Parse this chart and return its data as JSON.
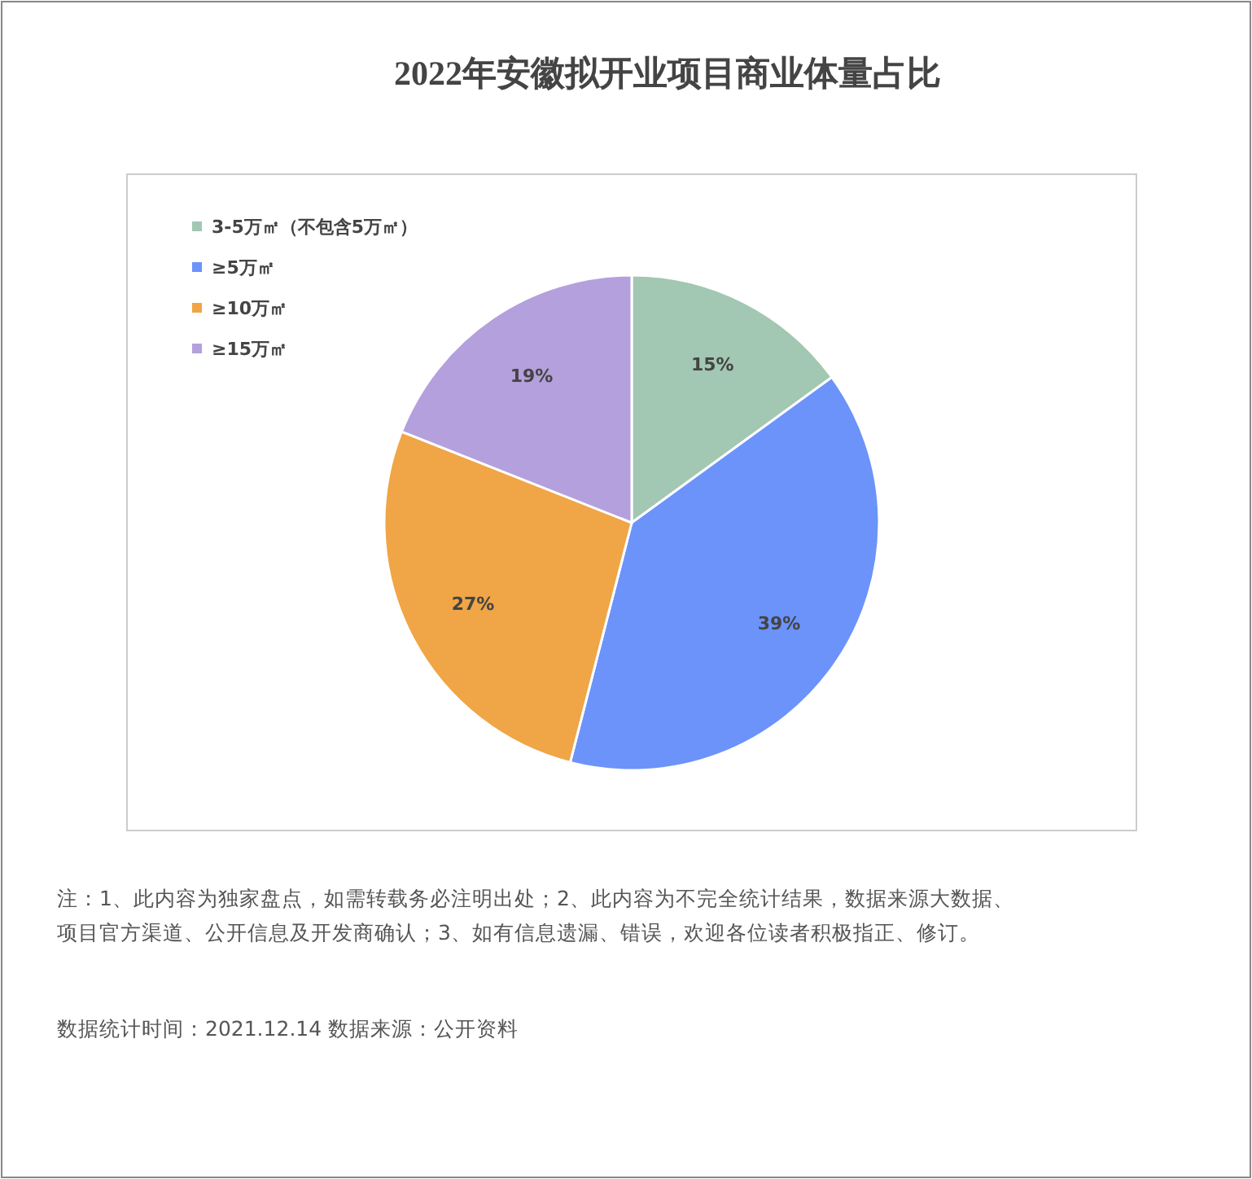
{
  "chart_data": {
    "type": "pie",
    "title": "2022年安徽拟开业项目商业体量占比",
    "categories": [
      "3-5万㎡（不包含5万㎡）",
      "≥5万㎡",
      "≥10万㎡",
      "≥15万㎡"
    ],
    "values": [
      15,
      39,
      27,
      19
    ],
    "colors": [
      "#a2c7b2",
      "#6b93fa",
      "#f0a546",
      "#b3a0dc"
    ],
    "value_labels": [
      "15%",
      "39%",
      "27%",
      "19%"
    ],
    "legend": "top left",
    "annotations": [
      "注：1、此内容为独家盘点，如需转载务必注明出处；2、此内容为不完全统计结果，数据来源大数据、项目官方渠道、公开信息及开发商确认；3、如有信息遗漏、错误，欢迎各位读者积极指正、修订。",
      "数据统计时间：2021.12.14 数据来源：公开资料"
    ]
  }
}
